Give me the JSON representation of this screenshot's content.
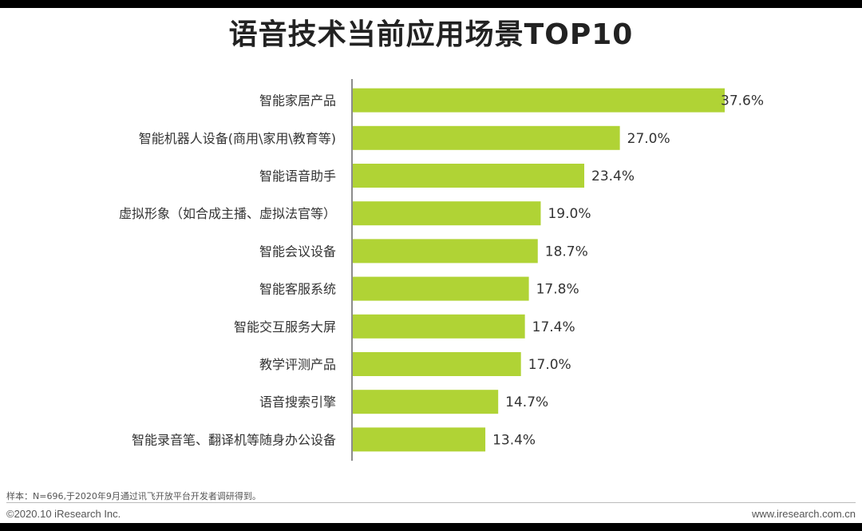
{
  "chart_data": {
    "type": "bar",
    "orientation": "horizontal",
    "title": "语音技术当前应用场景TOP10",
    "categories": [
      "智能家居产品",
      "智能机器人设备(商用\\家用\\教育等)",
      "智能语音助手",
      "虚拟形象（如合成主播、虚拟法官等）",
      "智能会议设备",
      "智能客服系统",
      "智能交互服务大屏",
      "教学评测产品",
      "语音搜索引擎",
      "智能录音笔、翻译机等随身办公设备"
    ],
    "values": [
      37.6,
      27.0,
      23.4,
      19.0,
      18.7,
      17.8,
      17.4,
      17.0,
      14.7,
      13.4
    ],
    "value_labels": [
      "37.6%",
      "27.0%",
      "23.4%",
      "19.0%",
      "18.7%",
      "17.8%",
      "17.4%",
      "17.0%",
      "14.7%",
      "13.4%"
    ],
    "xlim": [
      0,
      40
    ],
    "bar_color": "#b0d335",
    "grid": false,
    "legend": "none"
  },
  "footer": {
    "source_note": "样本：N=696,于2020年9月通过讯飞开放平台开发者调研得到。",
    "copyright": "©2020.10 iResearch Inc.",
    "website": "www.iresearch.com.cn"
  }
}
